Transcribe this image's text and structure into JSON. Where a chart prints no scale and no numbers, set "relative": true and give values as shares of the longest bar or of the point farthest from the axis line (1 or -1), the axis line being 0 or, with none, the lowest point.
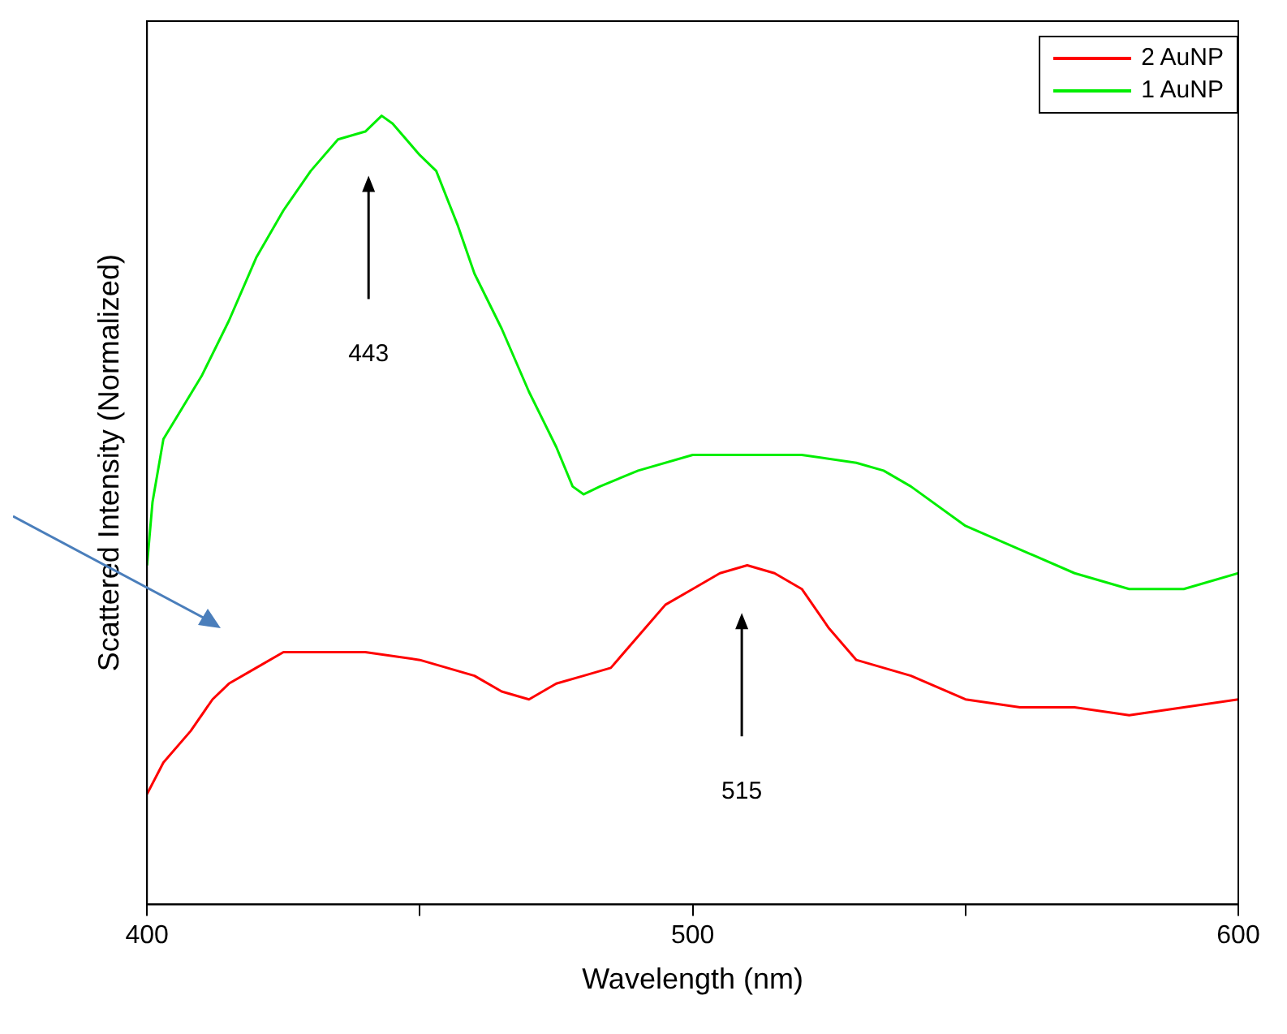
{
  "chart_data": {
    "type": "line",
    "xlabel": "Wavelength (nm)",
    "ylabel": "Scattered Intensity (Normalized)",
    "relative": true,
    "xlim": [
      400,
      600
    ],
    "xticks": [
      400,
      {
        "value": 450,
        "label": null
      },
      500,
      {
        "value": 550,
        "label": null
      },
      600
    ],
    "grid": false,
    "legend": "top right",
    "marker": "none",
    "line_style": "solid",
    "series": [
      {
        "name": "2 AuNP",
        "color": "#ff0000",
        "x": [
          400,
          403,
          408,
          412,
          415,
          420,
          425,
          430,
          440,
          450,
          460,
          465,
          470,
          475,
          480,
          485,
          490,
          495,
          500,
          505,
          510,
          515,
          520,
          525,
          530,
          540,
          550,
          560,
          570,
          580,
          590,
          600
        ],
        "values": [
          0.14,
          0.18,
          0.22,
          0.26,
          0.28,
          0.3,
          0.32,
          0.32,
          0.32,
          0.31,
          0.29,
          0.27,
          0.26,
          0.28,
          0.29,
          0.3,
          0.34,
          0.38,
          0.4,
          0.42,
          0.43,
          0.42,
          0.4,
          0.35,
          0.31,
          0.29,
          0.26,
          0.25,
          0.25,
          0.24,
          0.25,
          0.26
        ]
      },
      {
        "name": "1 AuNP",
        "color": "#00ee00",
        "x": [
          400,
          401,
          403,
          410,
          415,
          420,
          425,
          430,
          435,
          440,
          443,
          445,
          450,
          453,
          457,
          460,
          465,
          470,
          475,
          478,
          480,
          483,
          490,
          500,
          510,
          520,
          530,
          535,
          540,
          550,
          560,
          570,
          580,
          590,
          600
        ],
        "values": [
          0.43,
          0.51,
          0.59,
          0.67,
          0.74,
          0.82,
          0.88,
          0.93,
          0.97,
          0.98,
          1.0,
          0.99,
          0.95,
          0.93,
          0.86,
          0.8,
          0.73,
          0.65,
          0.58,
          0.53,
          0.52,
          0.53,
          0.55,
          0.57,
          0.57,
          0.57,
          0.56,
          0.55,
          0.53,
          0.48,
          0.45,
          0.42,
          0.4,
          0.4,
          0.42
        ]
      }
    ],
    "annotations": [
      "443",
      "515"
    ]
  }
}
